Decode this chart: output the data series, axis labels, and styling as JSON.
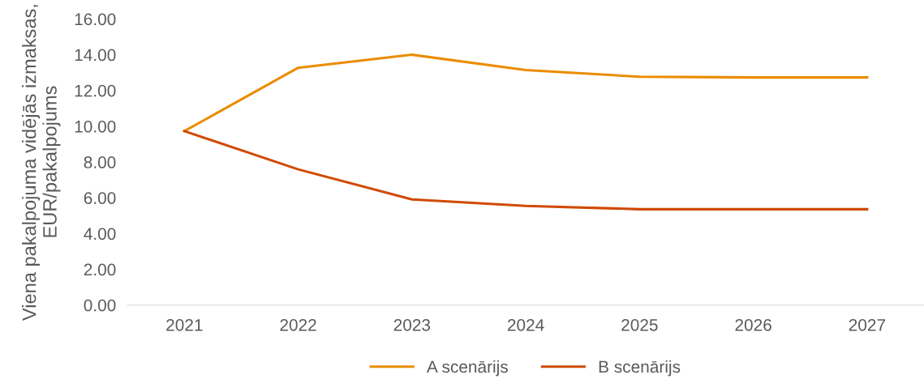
{
  "chart_data": {
    "type": "line",
    "ylabel": "Viena pakalpojuma vidējās izmaksas, EUR/pakalpojums",
    "categories": [
      "2021",
      "2022",
      "2023",
      "2024",
      "2025",
      "2026",
      "2027"
    ],
    "series": [
      {
        "name": "A scenārijs",
        "color": "#eb8c00",
        "values": [
          9.73,
          13.27,
          14.0,
          13.14,
          12.77,
          12.73,
          12.73
        ]
      },
      {
        "name": "B scenārijs",
        "color": "#d04a02",
        "values": [
          9.73,
          7.59,
          5.91,
          5.55,
          5.36,
          5.36,
          5.36
        ]
      }
    ],
    "ylim": [
      0,
      16
    ],
    "yticks": [
      {
        "value": 0,
        "label": "0.00"
      },
      {
        "value": 2,
        "label": "2.00"
      },
      {
        "value": 4,
        "label": "4.00"
      },
      {
        "value": 6,
        "label": "6.00"
      },
      {
        "value": 8,
        "label": "8.00"
      },
      {
        "value": 10,
        "label": "10.00"
      },
      {
        "value": 12,
        "label": "12.00"
      },
      {
        "value": 14,
        "label": "14.00"
      },
      {
        "value": 16,
        "label": "16.00"
      }
    ],
    "grid": false,
    "legend": "bottom",
    "marker": "none",
    "line_style": "solid"
  }
}
